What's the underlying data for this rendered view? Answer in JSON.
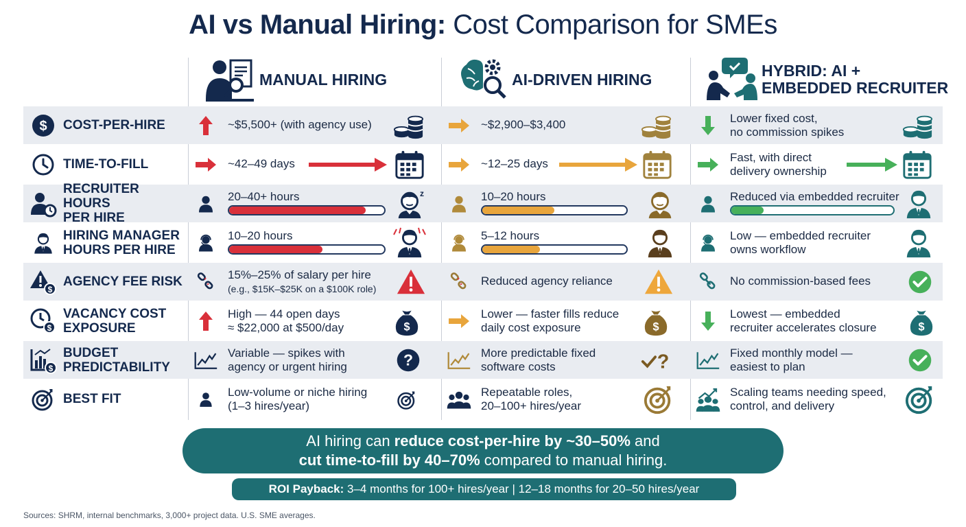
{
  "title": {
    "bold": "AI vs Manual Hiring:",
    "rest": "Cost Comparison for SMEs"
  },
  "columns": [
    {
      "label": "MANUAL HIRING",
      "icon": "person-resume-magnifier-icon"
    },
    {
      "label": "AI-DRIVEN HIRING",
      "icon": "brain-gear-magnifier-icon"
    },
    {
      "label_line1": "HYBRID: AI +",
      "label_line2": "EMBEDDED RECRUITER",
      "icon": "handshake-chat-icon"
    }
  ],
  "rows": [
    {
      "label": "COST-PER-HIRE",
      "icon": "dollar-circle-icon",
      "manual": {
        "text": "~$5,500+ (with agency use)"
      },
      "ai": {
        "text": "~$2,900–$3,400"
      },
      "hybrid": {
        "line1": "Lower fixed cost,",
        "line2": "no commission spikes"
      }
    },
    {
      "label": "TIME-TO-FILL",
      "icon": "clock-icon",
      "manual": {
        "text": "~42–49 days"
      },
      "ai": {
        "text": "~12–25 days"
      },
      "hybrid": {
        "line1": "Fast, with direct",
        "line2": "delivery ownership"
      }
    },
    {
      "label_line1": "RECRUITER HOURS",
      "label_line2": "PER HIRE",
      "icon": "recruiter-clock-icon",
      "manual": {
        "text": "20–40+ hours",
        "level": 0.88
      },
      "ai": {
        "text": "10–20 hours",
        "level": 0.5
      },
      "hybrid": {
        "text": "Reduced via embedded recruiter",
        "level": 0.2
      }
    },
    {
      "label_line1": "HIRING MANAGER",
      "label_line2": "HOURS PER HIRE",
      "icon": "manager-icon",
      "manual": {
        "text": "10–20 hours",
        "level": 0.6
      },
      "ai": {
        "text": "5–12 hours",
        "level": 0.4
      },
      "hybrid": {
        "line1": "Low — embedded recruiter",
        "line2": "owns workflow"
      }
    },
    {
      "label": "AGENCY FEE RISK",
      "icon": "warning-dollar-icon",
      "manual": {
        "line1": "15%–25% of salary per hire",
        "line2": "(e.g., $15K–$25K on a $100K role)"
      },
      "ai": {
        "text": "Reduced agency reliance"
      },
      "hybrid": {
        "text": "No commission-based fees"
      }
    },
    {
      "label_line1": "VACANCY COST",
      "label_line2": "EXPOSURE",
      "icon": "clock-dollar-icon",
      "manual": {
        "line1": "High — 44 open days",
        "line2": "≈ $22,000 at $500/day"
      },
      "ai": {
        "line1": "Lower — faster fills reduce",
        "line2": "daily cost exposure"
      },
      "hybrid": {
        "line1": "Lowest — embedded",
        "line2": "recruiter accelerates closure"
      }
    },
    {
      "label_line1": "BUDGET",
      "label_line2": "PREDICTABILITY",
      "icon": "chart-dollar-icon",
      "manual": {
        "line1": "Variable — spikes with",
        "line2": "agency or urgent hiring"
      },
      "ai": {
        "line1": "More predictable fixed",
        "line2": "software costs"
      },
      "hybrid": {
        "line1": "Fixed monthly model —",
        "line2": "easiest to plan"
      }
    },
    {
      "label": "BEST FIT",
      "icon": "target-icon",
      "manual": {
        "line1": "Low-volume or niche hiring",
        "line2": "(1–3 hires/year)"
      },
      "ai": {
        "line1": "Repeatable roles,",
        "line2": "20–100+ hires/year"
      },
      "hybrid": {
        "line1": "Scaling teams needing speed,",
        "line2": "control, and delivery"
      }
    }
  ],
  "banner": {
    "p1": "AI hiring can ",
    "b1": "reduce cost-per-hire by ~30–50%",
    "p2": " and",
    "b2": "cut time-to-fill by 40–70%",
    "p3": " compared to manual hiring."
  },
  "roi": {
    "label": "ROI Payback:",
    "text": " 3–4 months for 100+ hires/year | 12–18 months for 20–50 hires/year"
  },
  "sources": "Sources: SHRM, internal benchmarks, 3,000+ project data. U.S. SME averages.",
  "colors": {
    "navy": "#14294d",
    "red": "#d9303a",
    "orange": "#e8a53c",
    "green": "#47b05a",
    "teal": "#1e6e73",
    "gold": "#b08a3a",
    "row_shade": "#e9ecf1"
  }
}
